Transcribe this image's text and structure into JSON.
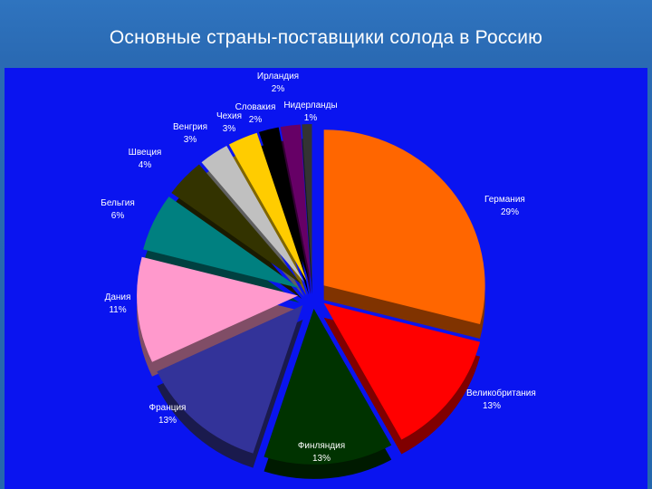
{
  "title": "Основные страны-поставщики солода в Россию",
  "chart_data": {
    "type": "pie",
    "exploded": true,
    "three_d": true,
    "slices": [
      {
        "label": "Германия",
        "value": 29,
        "value_label": "29%",
        "color": "#ff6600"
      },
      {
        "label": "Великобритания",
        "value": 13,
        "value_label": "13%",
        "color": "#ff0000"
      },
      {
        "label": "Финляндия",
        "value": 13,
        "value_label": "13%",
        "color": "#003300"
      },
      {
        "label": "Франция",
        "value": 13,
        "value_label": "13%",
        "color": "#333399"
      },
      {
        "label": "Дания",
        "value": 11,
        "value_label": "11%",
        "color": "#ff99cc"
      },
      {
        "label": "Бельгия",
        "value": 6,
        "value_label": "6%",
        "color": "#008080"
      },
      {
        "label": "Швеция",
        "value": 4,
        "value_label": "4%",
        "color": "#333300"
      },
      {
        "label": "Венгрия",
        "value": 3,
        "value_label": "3%",
        "color": "#c0c0c0"
      },
      {
        "label": "Чехия",
        "value": 3,
        "value_label": "3%",
        "color": "#ffcc00"
      },
      {
        "label": "Словакия",
        "value": 2,
        "value_label": "2%",
        "color": "#000000"
      },
      {
        "label": "Ирландия",
        "value": 2,
        "value_label": "2%",
        "color": "#660066"
      },
      {
        "label": "Нидерланды",
        "value": 1,
        "value_label": "1%",
        "color": "#333333"
      }
    ]
  }
}
